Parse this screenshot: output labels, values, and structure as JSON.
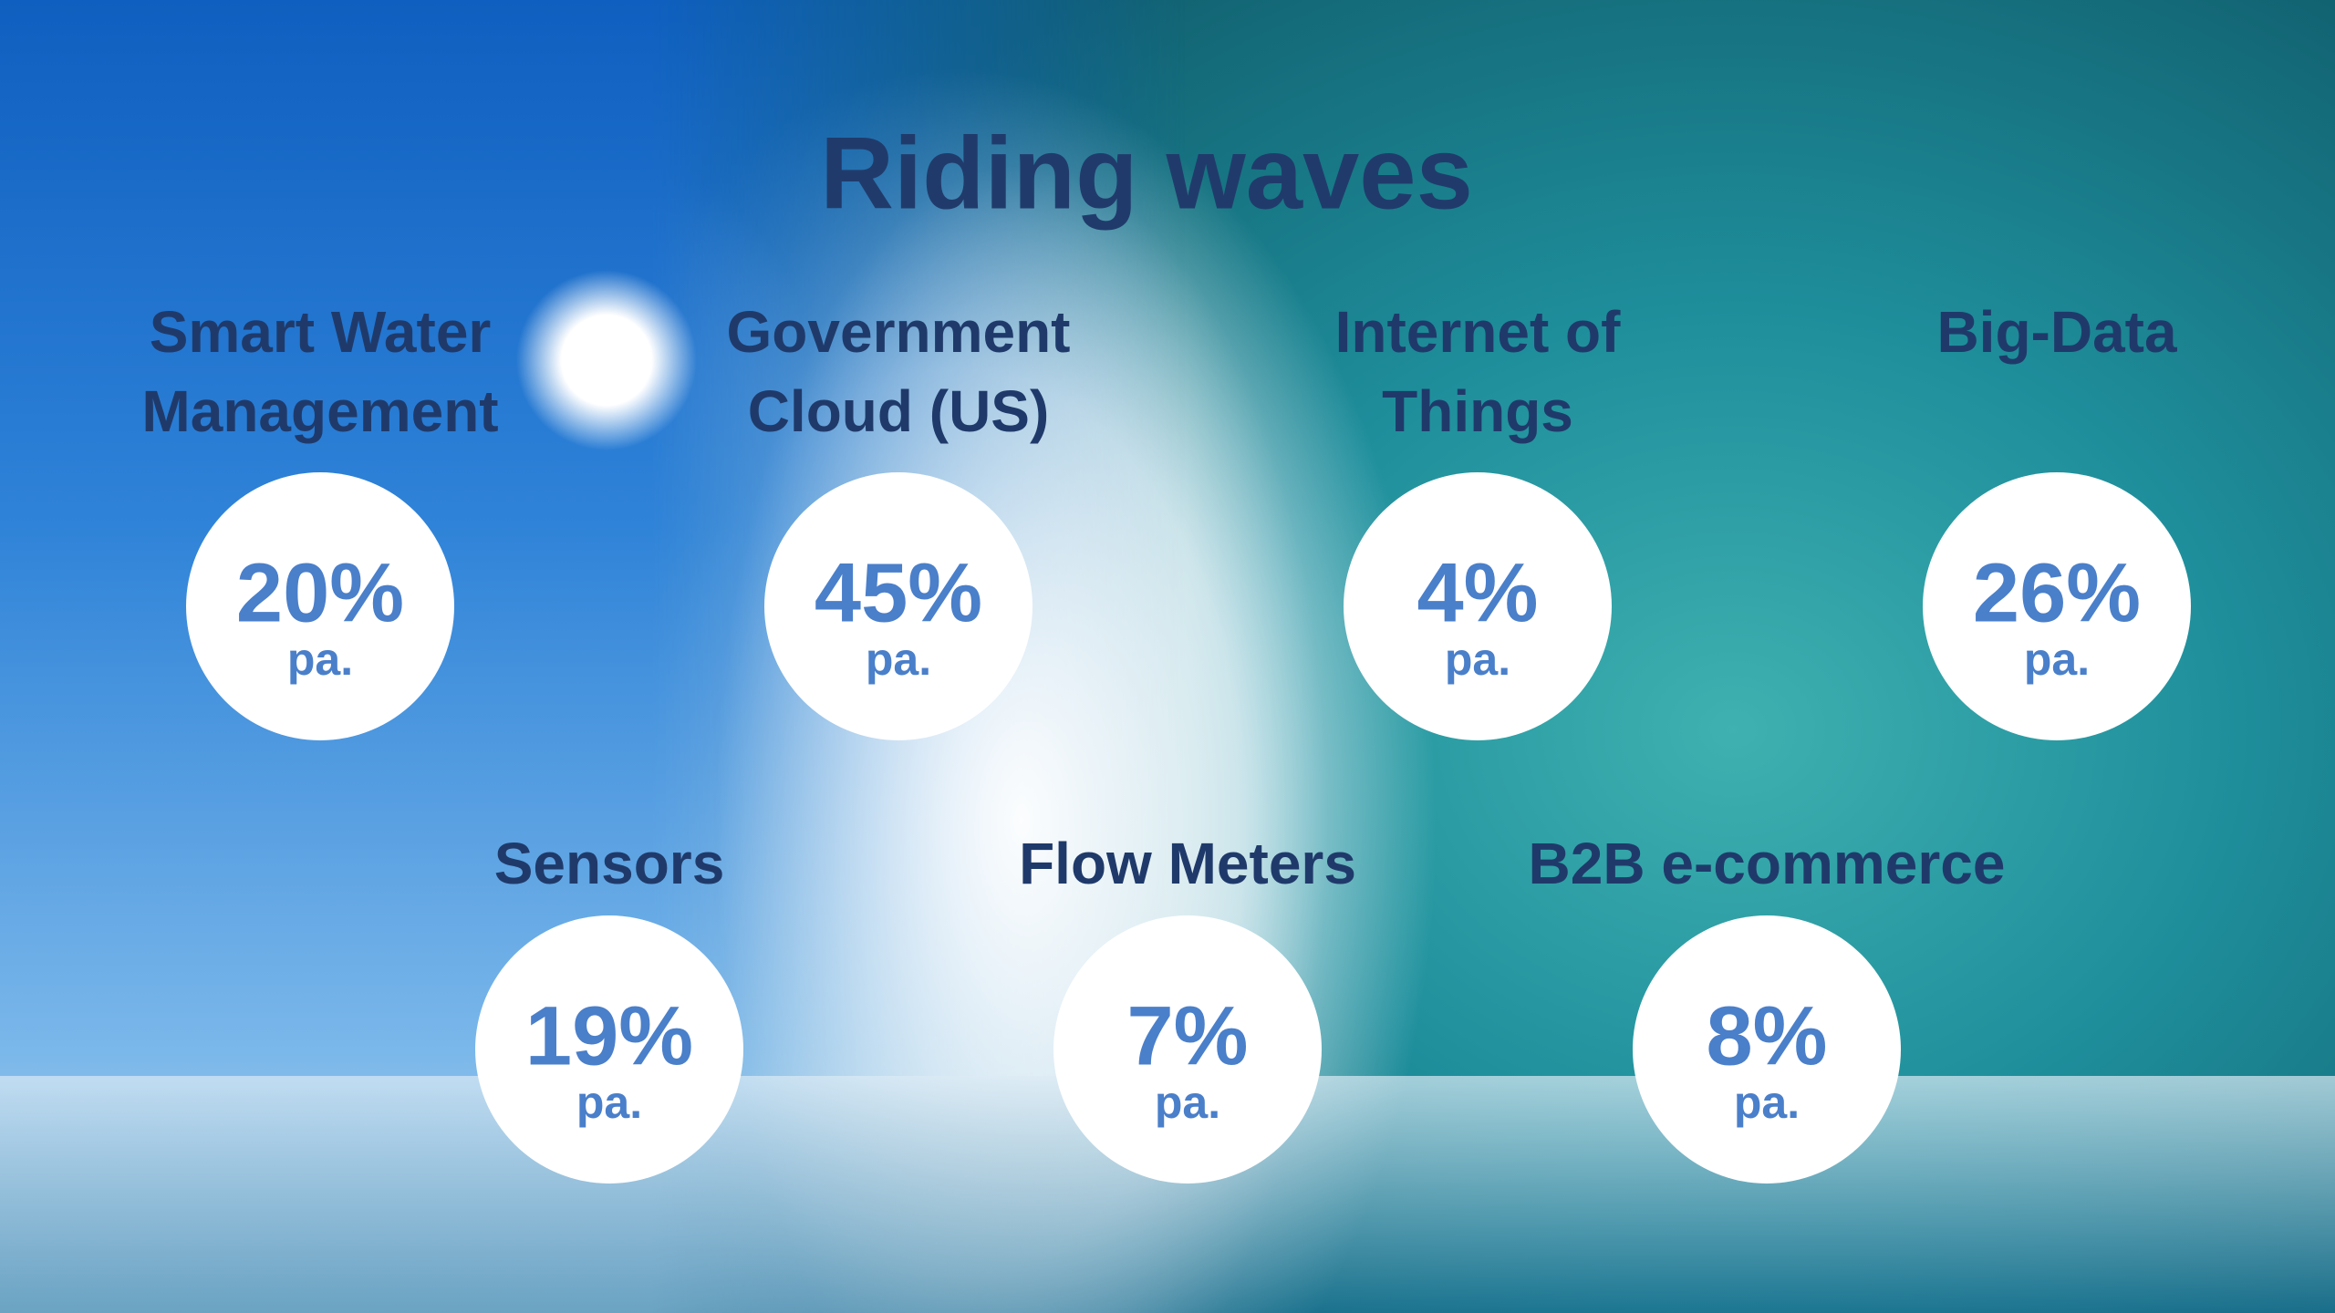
{
  "title": "Riding waves",
  "items": [
    {
      "label": [
        "Smart Water",
        "Management"
      ],
      "value": "20%",
      "unit": "pa."
    },
    {
      "label": [
        "Government",
        "Cloud (US)"
      ],
      "value": "45%",
      "unit": "pa."
    },
    {
      "label": [
        "Internet of",
        "Things"
      ],
      "value": "4%",
      "unit": "pa."
    },
    {
      "label": [
        "Big-Data"
      ],
      "value": "26%",
      "unit": "pa."
    },
    {
      "label": [
        "Sensors"
      ],
      "value": "19%",
      "unit": "pa."
    },
    {
      "label": [
        "Flow Meters"
      ],
      "value": "7%",
      "unit": "pa."
    },
    {
      "label": [
        "B2B e-commerce"
      ],
      "value": "8%",
      "unit": "pa."
    }
  ]
}
